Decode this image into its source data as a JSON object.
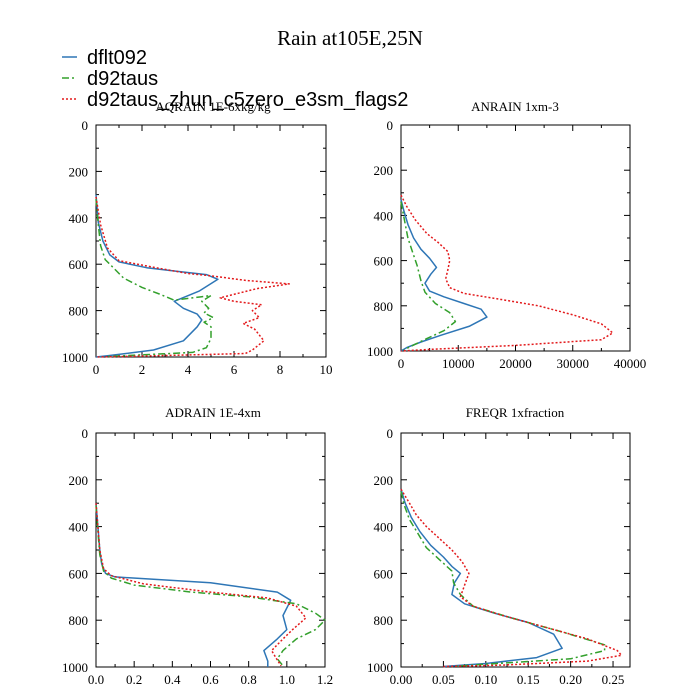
{
  "figure_title": "Rain at105E,25N",
  "legend": [
    {
      "name": "dflt092",
      "color": "#2e76b6",
      "dash": "solid"
    },
    {
      "name": "d92taus",
      "color": "#33a02c",
      "dash": "dashdot"
    },
    {
      "name": "d92taus_zhun_c5zero_e3sm_flags2",
      "color": "#e31a1c",
      "dash": "dotted"
    }
  ],
  "chart_data": [
    {
      "type": "line",
      "title": "AQRAIN  1E-6xkg/kg",
      "xlim": [
        0,
        10
      ],
      "ylim": [
        0,
        1000
      ],
      "xticks": [
        0,
        2,
        4,
        6,
        8,
        10
      ],
      "xtick_labels": [
        "0",
        "2",
        "4",
        "6",
        "8",
        "10"
      ],
      "yticks": [
        0,
        200,
        400,
        600,
        800,
        1000
      ],
      "ytick_labels": [
        "0",
        "200",
        "400",
        "600",
        "800",
        "1000"
      ],
      "series": [
        {
          "name": "dflt092",
          "points": [
            [
              0,
              300
            ],
            [
              0.1,
              420
            ],
            [
              0.3,
              500
            ],
            [
              0.6,
              560
            ],
            [
              1.0,
              590
            ],
            [
              2.2,
              615
            ],
            [
              3.5,
              630
            ],
            [
              4.8,
              645
            ],
            [
              5.3,
              665
            ],
            [
              4.5,
              715
            ],
            [
              3.4,
              760
            ],
            [
              3.8,
              790
            ],
            [
              4.4,
              815
            ],
            [
              4.6,
              840
            ],
            [
              4.4,
              870
            ],
            [
              3.8,
              930
            ],
            [
              2.5,
              970
            ],
            [
              0.5,
              995
            ],
            [
              0,
              1000
            ]
          ]
        },
        {
          "name": "d92taus",
          "points": [
            [
              0,
              320
            ],
            [
              0.1,
              430
            ],
            [
              0.2,
              520
            ],
            [
              0.4,
              580
            ],
            [
              0.7,
              610
            ],
            [
              1.2,
              660
            ],
            [
              2.0,
              700
            ],
            [
              2.8,
              730
            ],
            [
              3.4,
              755
            ],
            [
              4.6,
              740
            ],
            [
              5.0,
              735
            ],
            [
              4.6,
              760
            ],
            [
              4.9,
              790
            ],
            [
              4.7,
              810
            ],
            [
              5.1,
              830
            ],
            [
              4.7,
              850
            ],
            [
              5.0,
              870
            ],
            [
              5.0,
              920
            ],
            [
              4.8,
              960
            ],
            [
              4.2,
              980
            ],
            [
              0.5,
              998
            ]
          ]
        },
        {
          "name": "d92taus_zhun_c5zero_e3sm_flags2",
          "points": [
            [
              0,
              310
            ],
            [
              0.2,
              430
            ],
            [
              0.5,
              530
            ],
            [
              1.0,
              585
            ],
            [
              2.6,
              615
            ],
            [
              4.0,
              640
            ],
            [
              5.0,
              650
            ],
            [
              6.5,
              670
            ],
            [
              8.4,
              685
            ],
            [
              7.0,
              705
            ],
            [
              5.4,
              745
            ],
            [
              6.0,
              760
            ],
            [
              7.2,
              775
            ],
            [
              6.8,
              800
            ],
            [
              7.1,
              830
            ],
            [
              6.4,
              855
            ],
            [
              6.9,
              880
            ],
            [
              7.3,
              930
            ],
            [
              6.8,
              970
            ],
            [
              6.5,
              985
            ],
            [
              2.0,
              996
            ],
            [
              0,
              1000
            ]
          ]
        }
      ]
    },
    {
      "type": "line",
      "title": "ANRAIN  1xm-3",
      "xlim": [
        0,
        40000
      ],
      "ylim": [
        0,
        1000
      ],
      "xticks": [
        0,
        10000,
        20000,
        30000,
        40000
      ],
      "xtick_labels": [
        "0",
        "10000",
        "20000",
        "30000",
        "40000"
      ],
      "yticks": [
        0,
        200,
        400,
        600,
        800,
        1000
      ],
      "ytick_labels": [
        "0",
        "200",
        "400",
        "600",
        "800",
        "1000"
      ],
      "series": [
        {
          "name": "dflt092",
          "points": [
            [
              0,
              330
            ],
            [
              500,
              380
            ],
            [
              1200,
              440
            ],
            [
              2200,
              500
            ],
            [
              3500,
              550
            ],
            [
              5000,
              590
            ],
            [
              6200,
              630
            ],
            [
              5200,
              660
            ],
            [
              4200,
              700
            ],
            [
              5000,
              735
            ],
            [
              7500,
              760
            ],
            [
              11000,
              790
            ],
            [
              14000,
              815
            ],
            [
              15000,
              850
            ],
            [
              12000,
              890
            ],
            [
              7000,
              930
            ],
            [
              3500,
              960
            ],
            [
              1000,
              985
            ],
            [
              0,
              1000
            ]
          ]
        },
        {
          "name": "d92taus",
          "points": [
            [
              0,
              340
            ],
            [
              600,
              420
            ],
            [
              1200,
              500
            ],
            [
              2000,
              560
            ],
            [
              2800,
              620
            ],
            [
              3500,
              690
            ],
            [
              4200,
              740
            ],
            [
              6000,
              790
            ],
            [
              8500,
              830
            ],
            [
              9500,
              870
            ],
            [
              7500,
              910
            ],
            [
              4500,
              945
            ],
            [
              2500,
              970
            ],
            [
              500,
              995
            ]
          ]
        },
        {
          "name": "d92taus_zhun_c5zero_e3sm_flags2",
          "points": [
            [
              0,
              310
            ],
            [
              1000,
              360
            ],
            [
              2500,
              420
            ],
            [
              4500,
              480
            ],
            [
              6500,
              520
            ],
            [
              8200,
              560
            ],
            [
              8500,
              600
            ],
            [
              8200,
              640
            ],
            [
              7800,
              680
            ],
            [
              8500,
              720
            ],
            [
              11000,
              745
            ],
            [
              17000,
              770
            ],
            [
              24000,
              800
            ],
            [
              30000,
              840
            ],
            [
              35000,
              880
            ],
            [
              37000,
              920
            ],
            [
              35000,
              950
            ],
            [
              20000,
              975
            ],
            [
              5000,
              993
            ],
            [
              0,
              1000
            ]
          ]
        }
      ]
    },
    {
      "type": "line",
      "title": "ADRAIN  1E-4xm",
      "xlim": [
        0,
        1.2
      ],
      "ylim": [
        0,
        1000
      ],
      "xticks": [
        0,
        0.2,
        0.4,
        0.6,
        0.8,
        1.0,
        1.2
      ],
      "xtick_labels": [
        "0.0",
        "0.2",
        "0.4",
        "0.6",
        "0.8",
        "1.0",
        "1.2"
      ],
      "yticks": [
        0,
        200,
        400,
        600,
        800,
        1000
      ],
      "ytick_labels": [
        "0",
        "200",
        "400",
        "600",
        "800",
        "1000"
      ],
      "series": [
        {
          "name": "dflt092",
          "points": [
            [
              0,
              300
            ],
            [
              0.01,
              400
            ],
            [
              0.02,
              500
            ],
            [
              0.03,
              560
            ],
            [
              0.05,
              600
            ],
            [
              0.1,
              615
            ],
            [
              0.6,
              640
            ],
            [
              0.95,
              680
            ],
            [
              1.02,
              715
            ],
            [
              0.98,
              780
            ],
            [
              1.0,
              840
            ],
            [
              0.95,
              880
            ],
            [
              0.88,
              930
            ],
            [
              0.9,
              975
            ],
            [
              0.9,
              1000
            ]
          ]
        },
        {
          "name": "d92taus",
          "points": [
            [
              0,
              310
            ],
            [
              0.01,
              420
            ],
            [
              0.02,
              520
            ],
            [
              0.04,
              590
            ],
            [
              0.08,
              620
            ],
            [
              0.2,
              650
            ],
            [
              0.5,
              680
            ],
            [
              0.8,
              700
            ],
            [
              1.05,
              730
            ],
            [
              1.15,
              770
            ],
            [
              1.2,
              800
            ],
            [
              1.15,
              840
            ],
            [
              1.05,
              880
            ],
            [
              0.98,
              930
            ],
            [
              0.95,
              965
            ],
            [
              0.98,
              995
            ]
          ]
        },
        {
          "name": "d92taus_zhun_c5zero_e3sm_flags2",
          "points": [
            [
              0,
              300
            ],
            [
              0.01,
              400
            ],
            [
              0.02,
              500
            ],
            [
              0.04,
              580
            ],
            [
              0.08,
              610
            ],
            [
              0.25,
              645
            ],
            [
              0.6,
              680
            ],
            [
              0.9,
              705
            ],
            [
              1.05,
              740
            ],
            [
              1.1,
              790
            ],
            [
              1.03,
              840
            ],
            [
              0.98,
              880
            ],
            [
              0.92,
              930
            ],
            [
              0.95,
              970
            ],
            [
              0.97,
              995
            ]
          ]
        }
      ]
    },
    {
      "type": "line",
      "title": "FREQR  1xfraction",
      "xlim": [
        0,
        0.27
      ],
      "ylim": [
        0,
        1000
      ],
      "xticks": [
        0,
        0.05,
        0.1,
        0.15,
        0.2,
        0.25
      ],
      "xtick_labels": [
        "0.00",
        "0.05",
        "0.10",
        "0.15",
        "0.20",
        "0.25"
      ],
      "yticks": [
        0,
        200,
        400,
        600,
        800,
        1000
      ],
      "ytick_labels": [
        "0",
        "200",
        "400",
        "600",
        "800",
        "1000"
      ],
      "series": [
        {
          "name": "dflt092",
          "points": [
            [
              0,
              240
            ],
            [
              0.005,
              300
            ],
            [
              0.012,
              360
            ],
            [
              0.022,
              420
            ],
            [
              0.035,
              480
            ],
            [
              0.05,
              530
            ],
            [
              0.06,
              570
            ],
            [
              0.07,
              600
            ],
            [
              0.063,
              640
            ],
            [
              0.06,
              690
            ],
            [
              0.075,
              730
            ],
            [
              0.11,
              770
            ],
            [
              0.15,
              810
            ],
            [
              0.18,
              860
            ],
            [
              0.19,
              920
            ],
            [
              0.16,
              960
            ],
            [
              0.1,
              985
            ],
            [
              0.05,
              998
            ]
          ]
        },
        {
          "name": "d92taus",
          "points": [
            [
              0,
              250
            ],
            [
              0.004,
              310
            ],
            [
              0.01,
              370
            ],
            [
              0.02,
              430
            ],
            [
              0.03,
              490
            ],
            [
              0.045,
              540
            ],
            [
              0.06,
              590
            ],
            [
              0.062,
              640
            ],
            [
              0.07,
              690
            ],
            [
              0.085,
              740
            ],
            [
              0.13,
              790
            ],
            [
              0.19,
              850
            ],
            [
              0.24,
              905
            ],
            [
              0.24,
              930
            ],
            [
              0.2,
              965
            ],
            [
              0.1,
              988
            ],
            [
              0.06,
              998
            ]
          ]
        },
        {
          "name": "d92taus_zhun_c5zero_e3sm_flags2",
          "points": [
            [
              0,
              240
            ],
            [
              0.01,
              300
            ],
            [
              0.018,
              350
            ],
            [
              0.03,
              400
            ],
            [
              0.045,
              450
            ],
            [
              0.06,
              500
            ],
            [
              0.072,
              550
            ],
            [
              0.08,
              600
            ],
            [
              0.075,
              650
            ],
            [
              0.07,
              700
            ],
            [
              0.085,
              740
            ],
            [
              0.12,
              780
            ],
            [
              0.17,
              830
            ],
            [
              0.22,
              880
            ],
            [
              0.255,
              930
            ],
            [
              0.26,
              950
            ],
            [
              0.22,
              975
            ],
            [
              0.12,
              992
            ],
            [
              0.05,
              998
            ]
          ]
        }
      ]
    }
  ]
}
